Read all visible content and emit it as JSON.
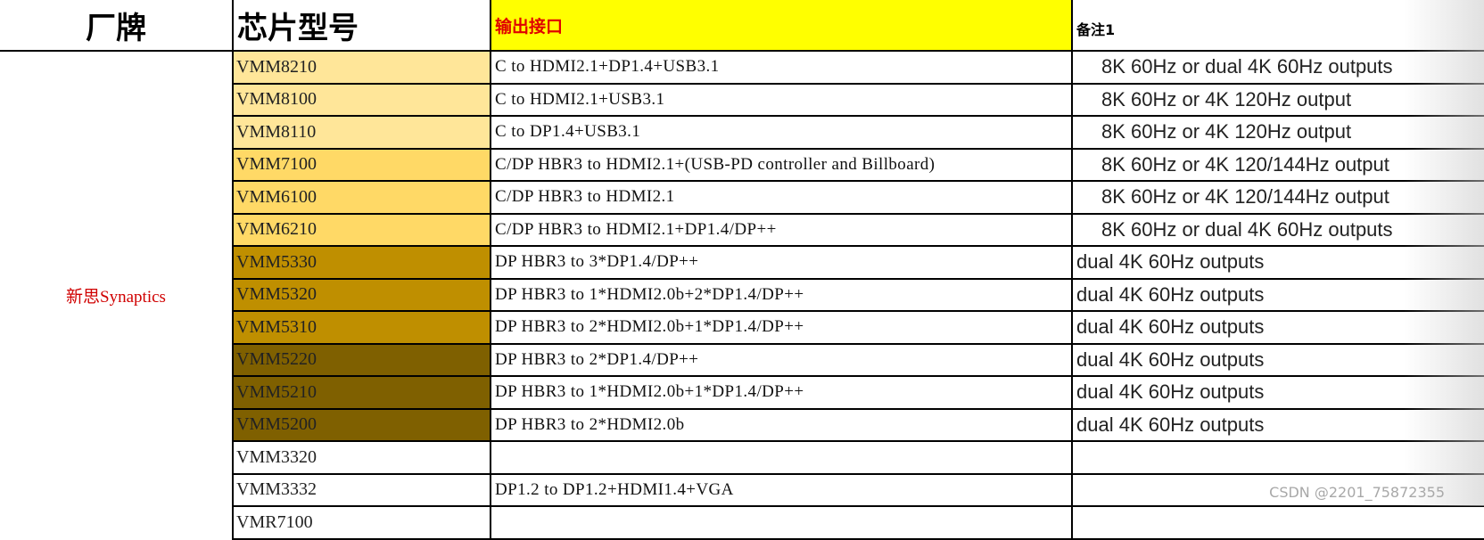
{
  "headers": {
    "brand": "厂牌",
    "model": "芯片型号",
    "interface": "输出接口",
    "note": "备注1"
  },
  "brand": "新思Synaptics",
  "colors": {
    "header_interface_bg": "#ffff00",
    "header_interface_text": "#e00000",
    "brand_text": "#d00000",
    "tier1": "#ffe699",
    "tier2": "#ffd966",
    "tier3": "#bf8f00",
    "tier4": "#7f6000"
  },
  "rows": [
    {
      "model": "VMM8210",
      "interface": "C to HDMI2.1+DP1.4+USB3.1",
      "note": "8K 60Hz or dual 4K 60Hz outputs",
      "tier": "tier1",
      "indent": true
    },
    {
      "model": "VMM8100",
      "interface": "C to HDMI2.1+USB3.1",
      "note": "8K 60Hz or 4K 120Hz output",
      "tier": "tier1",
      "indent": true
    },
    {
      "model": "VMM8110",
      "interface": "C to DP1.4+USB3.1",
      "note": "8K 60Hz or 4K 120Hz output",
      "tier": "tier1",
      "indent": true
    },
    {
      "model": "VMM7100",
      "interface": "C/DP HBR3 to HDMI2.1+(USB-PD controller and Billboard)",
      "note": "8K 60Hz or 4K 120/144Hz output",
      "tier": "tier2",
      "indent": true
    },
    {
      "model": "VMM6100",
      "interface": "C/DP HBR3 to HDMI2.1",
      "note": "8K 60Hz or 4K 120/144Hz output",
      "tier": "tier2",
      "indent": true
    },
    {
      "model": "VMM6210",
      "interface": "C/DP HBR3 to HDMI2.1+DP1.4/DP++",
      "note": "8K 60Hz or dual 4K 60Hz outputs",
      "tier": "tier2",
      "indent": true
    },
    {
      "model": "VMM5330",
      "interface": "DP HBR3 to 3*DP1.4/DP++",
      "note": "dual 4K 60Hz outputs",
      "tier": "tier3",
      "indent": false
    },
    {
      "model": "VMM5320",
      "interface": "DP HBR3 to 1*HDMI2.0b+2*DP1.4/DP++",
      "note": "dual 4K 60Hz outputs",
      "tier": "tier3",
      "indent": false
    },
    {
      "model": "VMM5310",
      "interface": "DP HBR3 to 2*HDMI2.0b+1*DP1.4/DP++",
      "note": "dual 4K 60Hz outputs",
      "tier": "tier3",
      "indent": false
    },
    {
      "model": "VMM5220",
      "interface": "DP HBR3 to 2*DP1.4/DP++",
      "note": "dual 4K 60Hz outputs",
      "tier": "tier4",
      "indent": false
    },
    {
      "model": "VMM5210",
      "interface": "DP HBR3 to 1*HDMI2.0b+1*DP1.4/DP++",
      "note": "dual 4K 60Hz outputs",
      "tier": "tier4",
      "indent": false
    },
    {
      "model": "VMM5200",
      "interface": "DP HBR3 to 2*HDMI2.0b",
      "note": "dual 4K 60Hz outputs",
      "tier": "tier4",
      "indent": false
    },
    {
      "model": "VMM3320",
      "interface": "",
      "note": "",
      "tier": "",
      "indent": false
    },
    {
      "model": "VMM3332",
      "interface": "DP1.2 to DP1.2+HDMI1.4+VGA",
      "note": "",
      "tier": "",
      "indent": false
    },
    {
      "model": "VMR7100",
      "interface": "",
      "note": "",
      "tier": "",
      "indent": false
    }
  ],
  "watermark": "CSDN @2201_75872355"
}
